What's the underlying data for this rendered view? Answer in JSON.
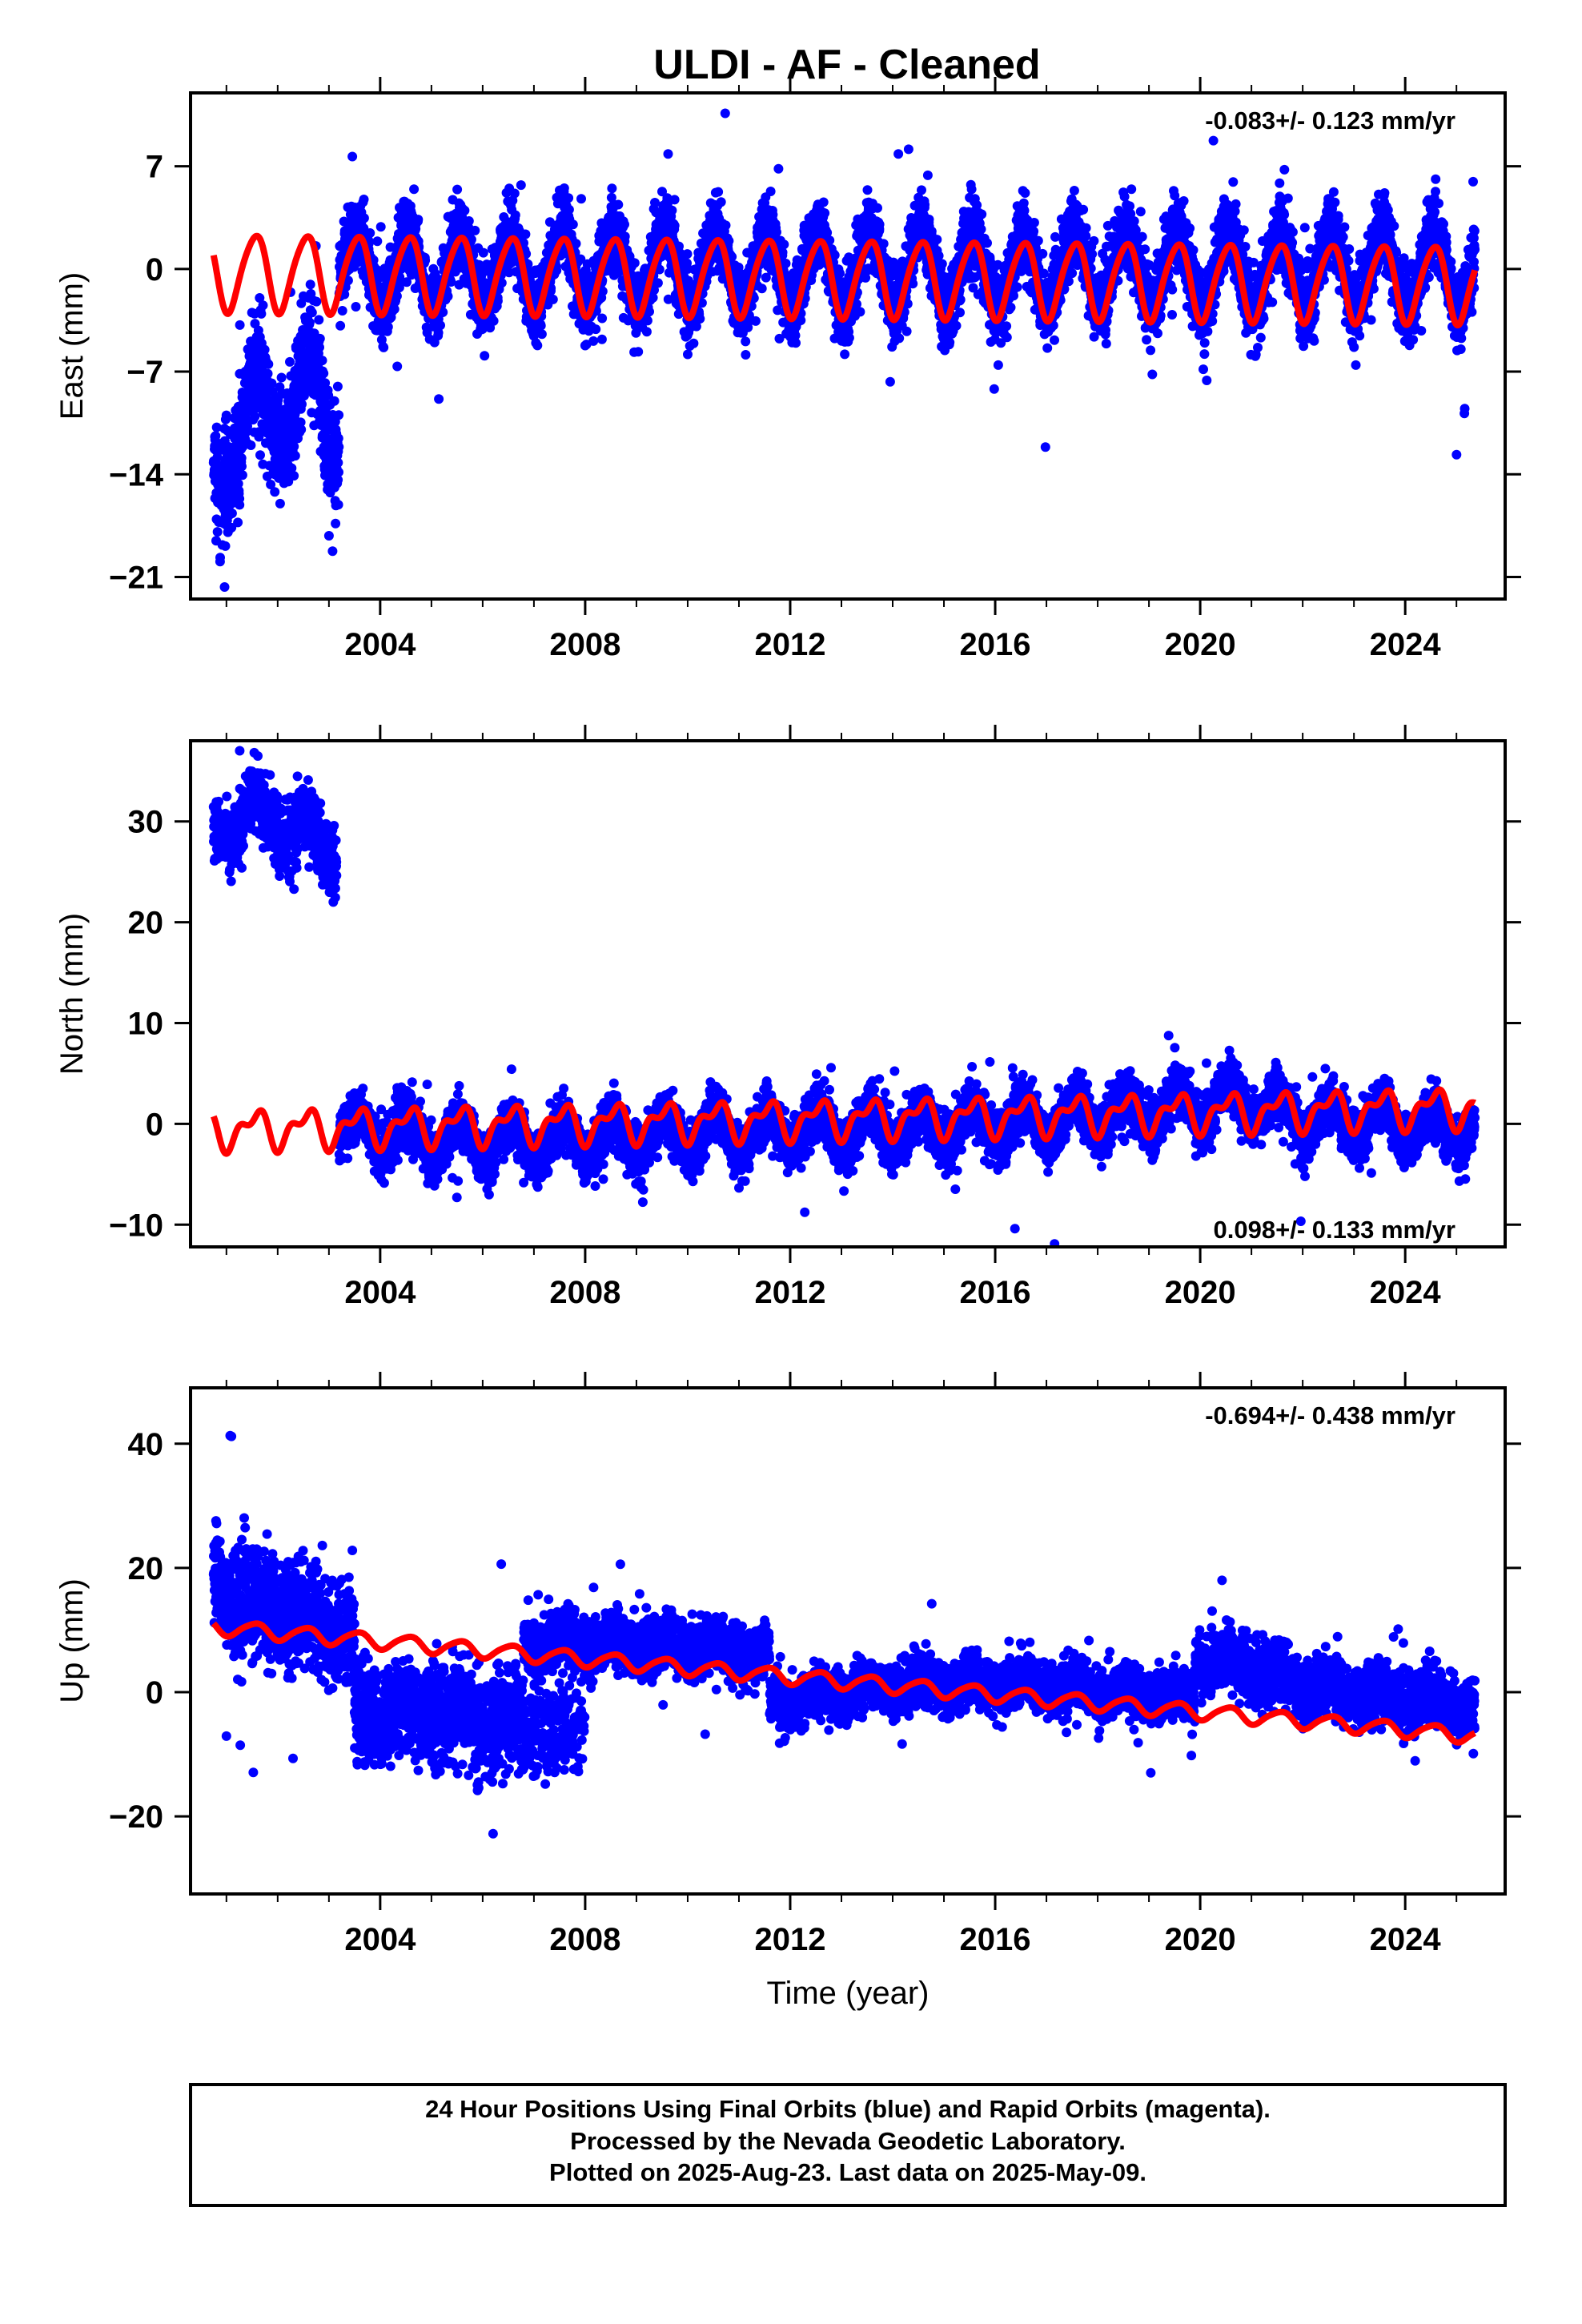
{
  "title": "ULDI  - AF - Cleaned",
  "footer": {
    "line1": "24 Hour Positions Using Final Orbits (blue) and Rapid Orbits (magenta).",
    "line2": "Processed by the Nevada Geodetic Laboratory.",
    "line3": "Plotted on 2025-Aug-23. Last data on 2025-May-09."
  },
  "colors": {
    "observations": "#0000ff",
    "model": "#ff0000",
    "frame": "#000000"
  },
  "chart_data": [
    {
      "type": "scatter",
      "id": "east",
      "ylabel": "East (mm)",
      "xlabel": "",
      "rate_label": "-0.083+/- 0.123 mm/yr",
      "rate_position": "top-right",
      "xlim": [
        2000.3,
        2025.95
      ],
      "ylim": [
        -22.5,
        12
      ],
      "xticks": [
        2004,
        2008,
        2012,
        2016,
        2020,
        2024
      ],
      "xtick_labels": [
        "2004",
        "2008",
        "2012",
        "2016",
        "2020",
        "2024"
      ],
      "yticks": [
        7,
        0,
        -7,
        -14,
        -21
      ],
      "ytick_labels": [
        "7",
        "0",
        "−7",
        "−14",
        "−21"
      ],
      "data_start": 2000.75,
      "data_end": 2025.36,
      "series": [
        {
          "kind": "observations",
          "segments": [
            {
              "x": [
                2000.75,
                2001.25,
                2001.75,
                2002.25,
                2002.75,
                2003.2
              ],
              "y": [
                -14,
                -11,
                -9,
                -10,
                -7,
                -12
              ],
              "spread": 3.5
            },
            {
              "x": [
                2003.2,
                2005,
                2008,
                2012,
                2016,
                2020,
                2024,
                2025.36
              ],
              "y": [
                0,
                0,
                0,
                0,
                0,
                0,
                0,
                0
              ],
              "spread": 2.2
            }
          ],
          "seasonal_amplitude": 2.6
        },
        {
          "kind": "model",
          "x": [
            2000.75,
            2025.36
          ],
          "trend_y": [
            -0.2,
            -1.0
          ],
          "annual_amplitude": 2.6,
          "semiannual_amplitude": 0.35
        }
      ]
    },
    {
      "type": "scatter",
      "id": "north",
      "ylabel": "North (mm)",
      "xlabel": "",
      "rate_label": "0.098+/- 0.133 mm/yr",
      "rate_position": "bottom-right",
      "xlim": [
        2000.3,
        2025.95
      ],
      "ylim": [
        -12.2,
        38
      ],
      "xticks": [
        2004,
        2008,
        2012,
        2016,
        2020,
        2024
      ],
      "xtick_labels": [
        "2004",
        "2008",
        "2012",
        "2016",
        "2020",
        "2024"
      ],
      "yticks": [
        30,
        20,
        10,
        0,
        -10
      ],
      "ytick_labels": [
        "30",
        "20",
        "10",
        "0",
        "−10"
      ],
      "data_start": 2000.75,
      "data_end": 2025.36,
      "series": [
        {
          "kind": "observations",
          "segments": [
            {
              "x": [
                2000.75,
                2001.5,
                2002.5,
                2003.15
              ],
              "y": [
                29,
                31,
                29,
                27
              ],
              "spread": 3.0
            },
            {
              "x": [
                2003.2,
                2006,
                2010,
                2014,
                2018,
                2020.8,
                2022,
                2025.36
              ],
              "y": [
                -0.5,
                -2,
                -1,
                -0.5,
                0.5,
                2.5,
                0.5,
                -0.5
              ],
              "spread": 2.3
            }
          ],
          "seasonal_amplitude": 1.8
        },
        {
          "kind": "model",
          "x": [
            2000.75,
            2025.36
          ],
          "trend_y": [
            -0.6,
            1.6
          ],
          "annual_amplitude": 1.6,
          "semiannual_amplitude": 0.9
        }
      ]
    },
    {
      "type": "scatter",
      "id": "up",
      "ylabel": "Up (mm)",
      "xlabel": "Time (year)",
      "rate_label": "-0.694+/- 0.438 mm/yr",
      "rate_position": "top-right",
      "xlim": [
        2000.3,
        2025.95
      ],
      "ylim": [
        -32.5,
        49
      ],
      "xticks": [
        2004,
        2008,
        2012,
        2016,
        2020,
        2024
      ],
      "xtick_labels": [
        "2004",
        "2008",
        "2012",
        "2016",
        "2020",
        "2024"
      ],
      "yticks": [
        40,
        20,
        0,
        -20
      ],
      "ytick_labels": [
        "40",
        "20",
        "0",
        "−20"
      ],
      "data_start": 2000.75,
      "data_end": 2025.36,
      "series": [
        {
          "kind": "observations",
          "segments": [
            {
              "x": [
                2000.75,
                2001.5,
                2002.5,
                2003.5
              ],
              "y": [
                17,
                14,
                12,
                8
              ],
              "spread": 7.5
            },
            {
              "x": [
                2003.5,
                2005,
                2006.5,
                2008
              ],
              "y": [
                -4,
                -3,
                -5,
                -4
              ],
              "spread": 7.0
            },
            {
              "x": [
                2006.8,
                2008,
                2010,
                2011.6
              ],
              "y": [
                8,
                8,
                7,
                6
              ],
              "spread": 4.0
            },
            {
              "x": [
                2011.6,
                2014,
                2017,
                2019.9
              ],
              "y": [
                -2,
                1,
                1,
                -1
              ],
              "spread": 3.6
            },
            {
              "x": [
                2019.9,
                2021,
                2022,
                2025.36
              ],
              "y": [
                5,
                4,
                1,
                -2
              ],
              "spread": 4.2
            }
          ],
          "seasonal_amplitude": 1.2
        },
        {
          "kind": "model",
          "x": [
            2000.75,
            2025.36
          ],
          "trend_y": [
            10.5,
            -7.0
          ],
          "annual_amplitude": 1.2,
          "semiannual_amplitude": 0.2
        }
      ]
    }
  ]
}
